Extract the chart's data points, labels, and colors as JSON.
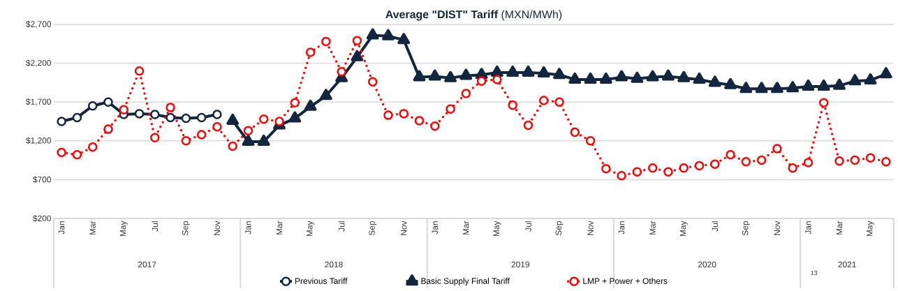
{
  "chart_data": {
    "type": "line",
    "title": "**Average \"DIST\" Tariff** (MXN/MWh)",
    "categories": [
      "Jan",
      null,
      "Mar",
      null,
      "May",
      null,
      "Jul",
      null,
      "Sep",
      null,
      "Nov",
      null,
      "Jan",
      null,
      "Mar",
      null,
      "May",
      null,
      "Jul",
      null,
      "Sep",
      null,
      "Nov",
      null,
      "Jan",
      null,
      "Mar",
      null,
      "May",
      null,
      "Jul",
      null,
      "Sep",
      null,
      "Nov",
      null,
      "Jan",
      null,
      "Mar",
      null,
      "May",
      null,
      "Jul",
      null,
      "Sep",
      null,
      "Nov",
      null,
      "Jan",
      null,
      "Mar",
      null,
      "May",
      null
    ],
    "series": [
      {
        "name": "Previous Tariff",
        "color": "#13263f",
        "marker": "circle",
        "line_style": "solid",
        "values": [
          1450,
          1500,
          1650,
          1700,
          1540,
          1550,
          1540,
          1500,
          1490,
          1500,
          1540,
          null,
          null,
          null,
          null,
          null,
          null,
          null,
          null,
          null,
          null,
          null,
          null,
          null,
          null,
          null,
          null,
          null,
          null,
          null,
          null,
          null,
          null,
          null,
          null,
          null,
          null,
          null,
          null,
          null,
          null,
          null,
          null,
          null,
          null,
          null,
          null,
          null,
          null,
          null,
          null,
          null,
          null,
          null
        ]
      },
      {
        "name": "Basic Supply Final Tariff",
        "color": "#13263f",
        "marker": "triangle",
        "line_style": "solid",
        "values": [
          null,
          null,
          null,
          null,
          null,
          null,
          null,
          null,
          null,
          null,
          null,
          1460,
          1190,
          1190,
          1400,
          1490,
          1640,
          1780,
          2010,
          2280,
          2560,
          2550,
          2500,
          2020,
          2030,
          2010,
          2040,
          2050,
          2080,
          2080,
          2080,
          2070,
          2050,
          1990,
          1990,
          1990,
          2020,
          2000,
          2020,
          2030,
          2010,
          1990,
          1950,
          1920,
          1870,
          1870,
          1870,
          1880,
          1900,
          1900,
          1910,
          1970,
          1980,
          2060
        ]
      },
      {
        "name": "LMP + Power + Others",
        "color": "#ff0000",
        "marker": "circle",
        "line_style": "dotted",
        "values": [
          1050,
          1020,
          1120,
          1350,
          1600,
          2100,
          1240,
          1630,
          1200,
          1280,
          1380,
          1130,
          1330,
          1480,
          1450,
          1690,
          2340,
          2480,
          2090,
          2490,
          1960,
          1530,
          1550,
          1460,
          1390,
          1610,
          1810,
          1970,
          1990,
          1660,
          1400,
          1720,
          1700,
          1310,
          1200,
          840,
          750,
          800,
          850,
          800,
          850,
          880,
          900,
          1020,
          930,
          950,
          1100,
          850,
          920,
          1690,
          940,
          950,
          980,
          930
        ]
      }
    ],
    "ylim": [
      200,
      2700
    ],
    "yticks": [
      {
        "value": 200,
        "label": "$200"
      },
      {
        "value": 700,
        "label": "$700"
      },
      {
        "value": 1200,
        "label": "$1,200"
      },
      {
        "value": 1700,
        "label": "$1,700"
      },
      {
        "value": 2200,
        "label": "$2,200"
      },
      {
        "value": 2700,
        "label": "$2,700"
      }
    ],
    "grid": "y",
    "legend": "bottom",
    "annotations": [
      "2017",
      "2018",
      "2019",
      "2020",
      "2021",
      "13"
    ]
  }
}
